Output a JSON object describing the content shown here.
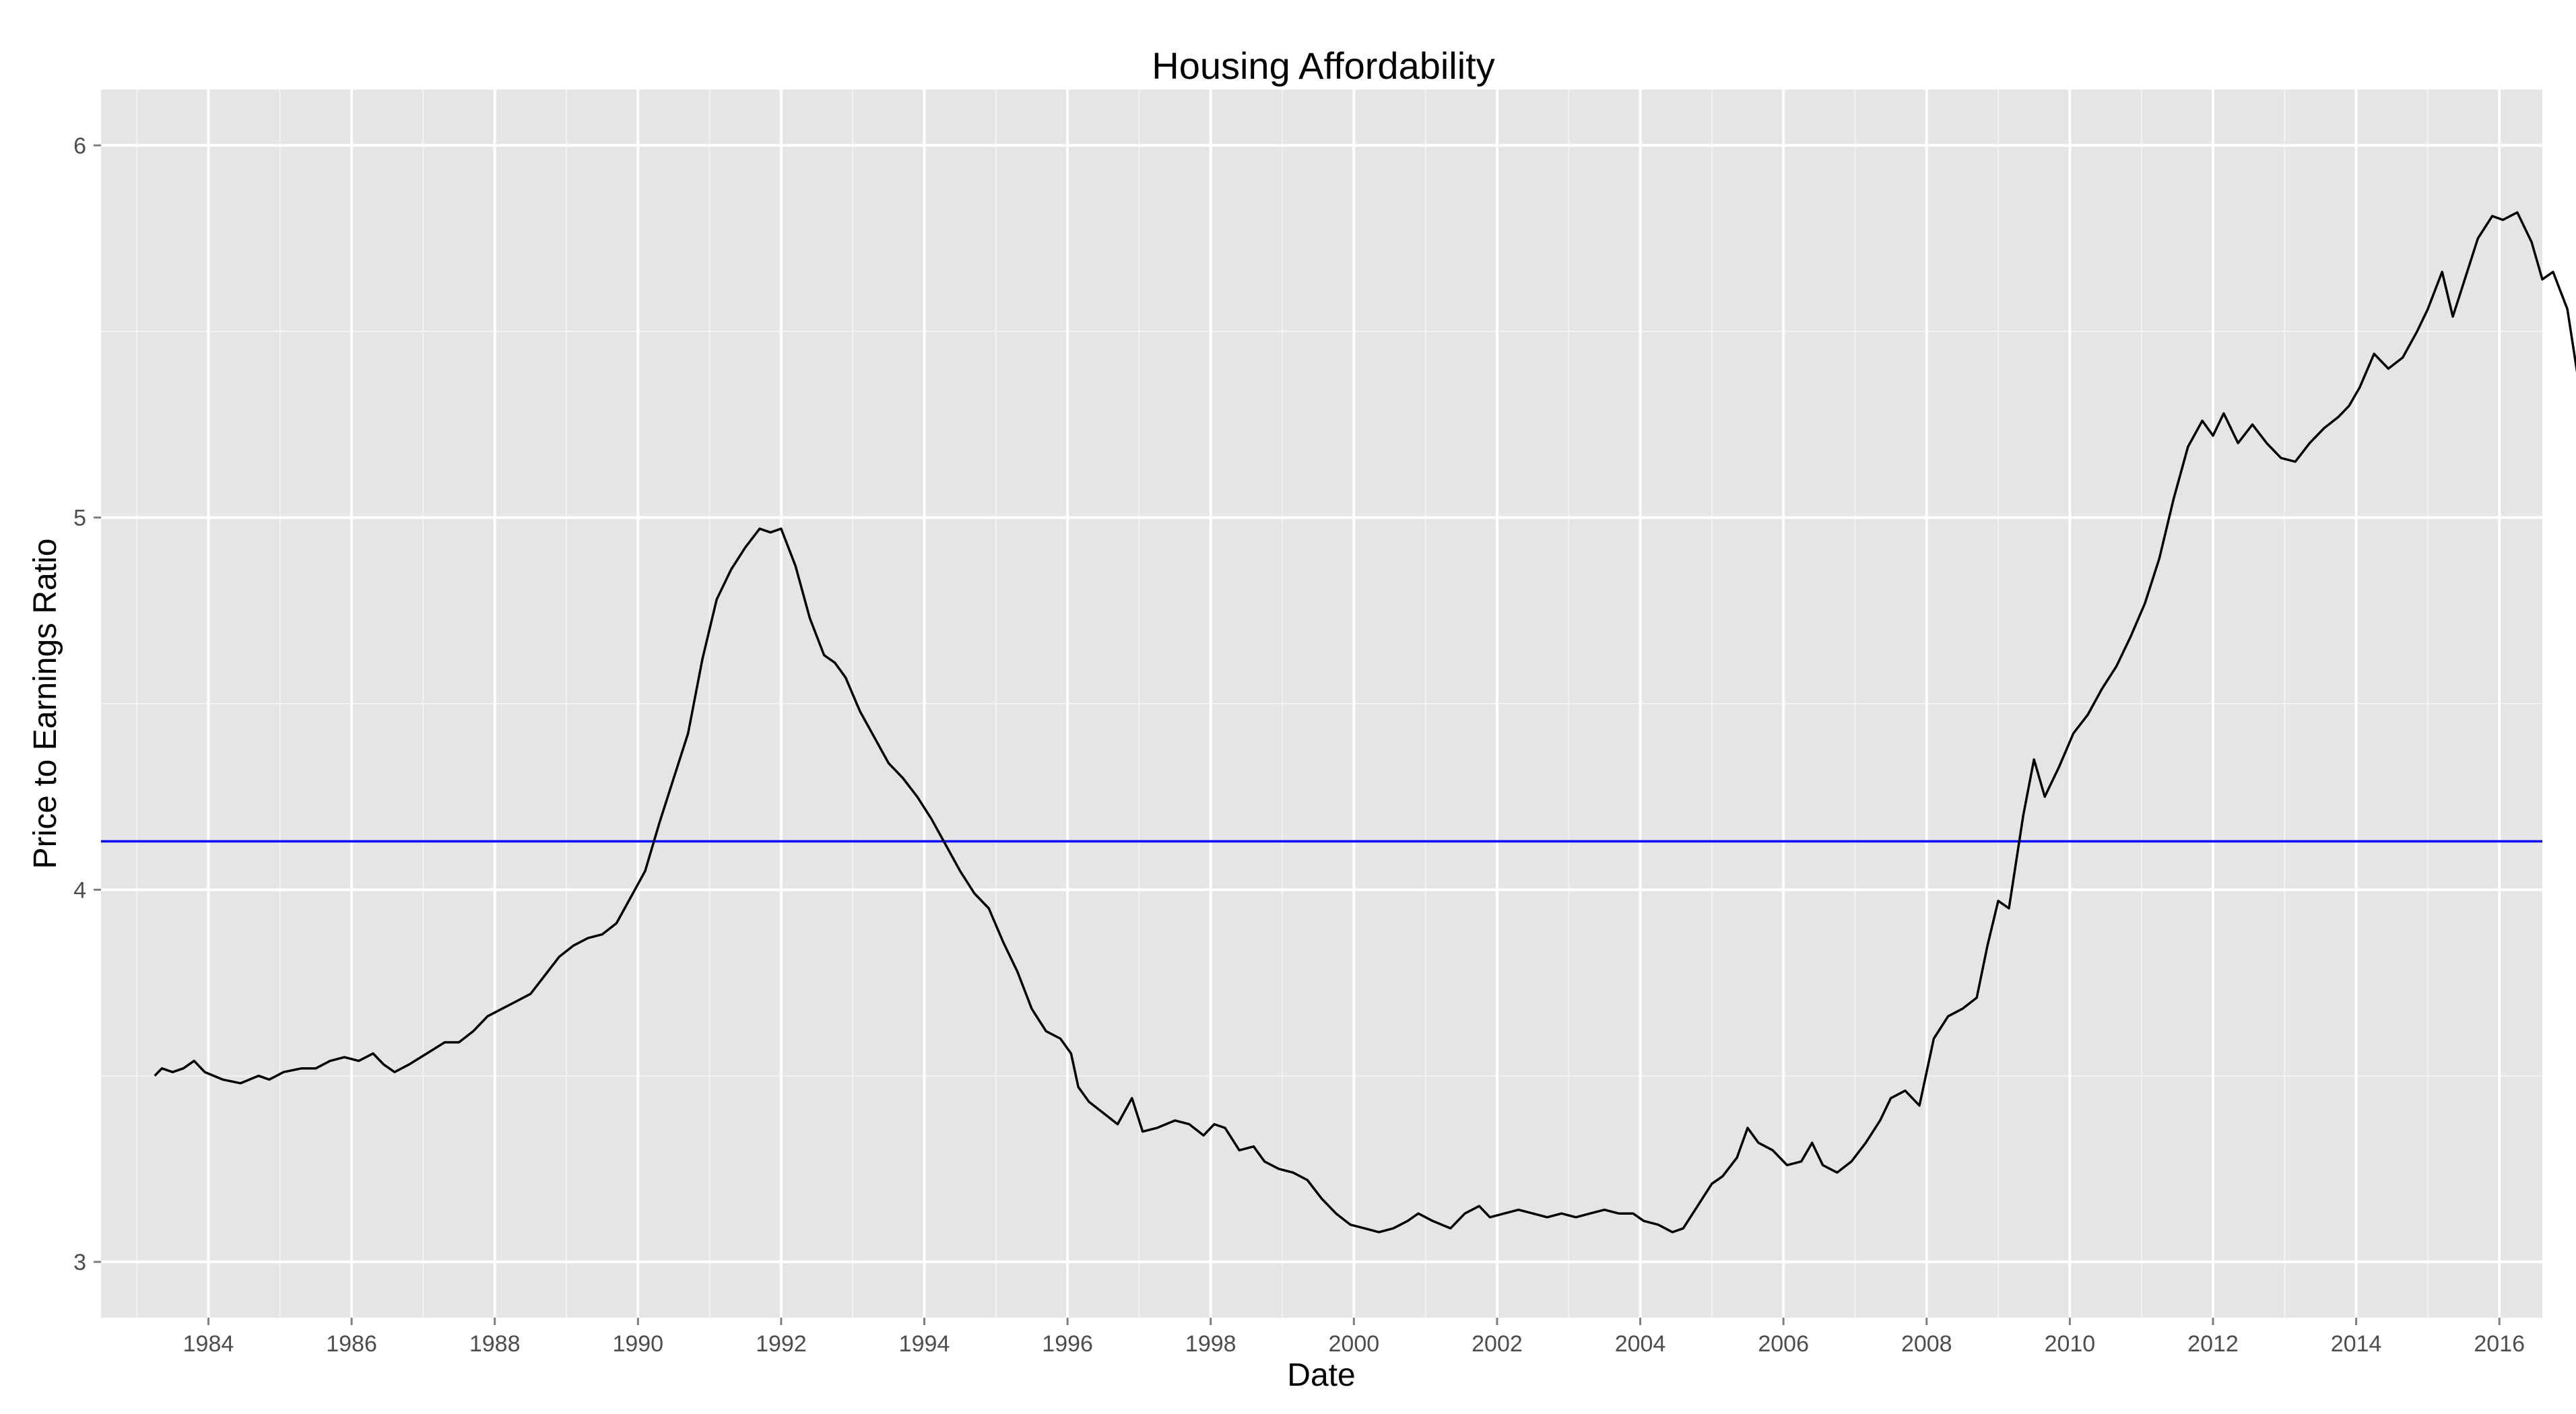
{
  "chart_data": {
    "type": "line",
    "title": "Housing Affordability",
    "xlabel": "Date",
    "ylabel": "Price to Earnings Ratio",
    "xlim": [
      1982.5,
      2016.6
    ],
    "ylim": [
      2.85,
      6.15
    ],
    "x_ticks": [
      1984,
      1986,
      1988,
      1990,
      1992,
      1994,
      1996,
      1998,
      2000,
      2002,
      2004,
      2006,
      2008,
      2010,
      2012,
      2014,
      2016
    ],
    "y_ticks": [
      3,
      4,
      5,
      6
    ],
    "grid": true,
    "background": "#e5e5e5",
    "series": [
      {
        "color": "#000000",
        "points": [
          [
            1983.25,
            3.5
          ],
          [
            1983.35,
            3.52
          ],
          [
            1983.5,
            3.51
          ],
          [
            1983.65,
            3.52
          ],
          [
            1983.8,
            3.54
          ],
          [
            1983.95,
            3.51
          ],
          [
            1984.2,
            3.49
          ],
          [
            1984.45,
            3.48
          ],
          [
            1984.7,
            3.5
          ],
          [
            1984.85,
            3.49
          ],
          [
            1985.05,
            3.51
          ],
          [
            1985.3,
            3.52
          ],
          [
            1985.5,
            3.52
          ],
          [
            1985.7,
            3.54
          ],
          [
            1985.9,
            3.55
          ],
          [
            1986.1,
            3.54
          ],
          [
            1986.3,
            3.56
          ],
          [
            1986.45,
            3.53
          ],
          [
            1986.6,
            3.51
          ],
          [
            1986.8,
            3.53
          ],
          [
            1987.05,
            3.56
          ],
          [
            1987.3,
            3.59
          ],
          [
            1987.5,
            3.59
          ],
          [
            1987.7,
            3.62
          ],
          [
            1987.9,
            3.66
          ],
          [
            1988.1,
            3.68
          ],
          [
            1988.3,
            3.7
          ],
          [
            1988.5,
            3.72
          ],
          [
            1988.7,
            3.77
          ],
          [
            1988.9,
            3.82
          ],
          [
            1989.1,
            3.85
          ],
          [
            1989.3,
            3.87
          ],
          [
            1989.5,
            3.88
          ],
          [
            1989.7,
            3.91
          ],
          [
            1989.9,
            3.98
          ],
          [
            1990.1,
            4.05
          ],
          [
            1990.3,
            4.18
          ],
          [
            1990.5,
            4.3
          ],
          [
            1990.7,
            4.42
          ],
          [
            1990.9,
            4.62
          ],
          [
            1991.1,
            4.78
          ],
          [
            1991.3,
            4.86
          ],
          [
            1991.5,
            4.92
          ],
          [
            1991.7,
            4.97
          ],
          [
            1991.85,
            4.96
          ],
          [
            1992.0,
            4.97
          ],
          [
            1992.2,
            4.87
          ],
          [
            1992.4,
            4.73
          ],
          [
            1992.6,
            4.63
          ],
          [
            1992.75,
            4.61
          ],
          [
            1992.9,
            4.57
          ],
          [
            1993.1,
            4.48
          ],
          [
            1993.3,
            4.41
          ],
          [
            1993.5,
            4.34
          ],
          [
            1993.7,
            4.3
          ],
          [
            1993.9,
            4.25
          ],
          [
            1994.1,
            4.19
          ],
          [
            1994.3,
            4.12
          ],
          [
            1994.5,
            4.05
          ],
          [
            1994.7,
            3.99
          ],
          [
            1994.9,
            3.95
          ],
          [
            1995.1,
            3.86
          ],
          [
            1995.3,
            3.78
          ],
          [
            1995.5,
            3.68
          ],
          [
            1995.7,
            3.62
          ],
          [
            1995.9,
            3.6
          ],
          [
            1996.05,
            3.56
          ],
          [
            1996.15,
            3.47
          ],
          [
            1996.3,
            3.43
          ],
          [
            1996.5,
            3.4
          ],
          [
            1996.7,
            3.37
          ],
          [
            1996.9,
            3.44
          ],
          [
            1997.05,
            3.35
          ],
          [
            1997.25,
            3.36
          ],
          [
            1997.5,
            3.38
          ],
          [
            1997.7,
            3.37
          ],
          [
            1997.9,
            3.34
          ],
          [
            1998.05,
            3.37
          ],
          [
            1998.2,
            3.36
          ],
          [
            1998.4,
            3.3
          ],
          [
            1998.6,
            3.31
          ],
          [
            1998.75,
            3.27
          ],
          [
            1998.95,
            3.25
          ],
          [
            1999.15,
            3.24
          ],
          [
            1999.35,
            3.22
          ],
          [
            1999.55,
            3.17
          ],
          [
            1999.75,
            3.13
          ],
          [
            1999.95,
            3.1
          ],
          [
            2000.15,
            3.09
          ],
          [
            2000.35,
            3.08
          ],
          [
            2000.55,
            3.09
          ],
          [
            2000.75,
            3.11
          ],
          [
            2000.9,
            3.13
          ],
          [
            2001.1,
            3.11
          ],
          [
            2001.35,
            3.09
          ],
          [
            2001.55,
            3.13
          ],
          [
            2001.75,
            3.15
          ],
          [
            2001.9,
            3.12
          ],
          [
            2002.1,
            3.13
          ],
          [
            2002.3,
            3.14
          ],
          [
            2002.5,
            3.13
          ],
          [
            2002.7,
            3.12
          ],
          [
            2002.9,
            3.13
          ],
          [
            2003.1,
            3.12
          ],
          [
            2003.3,
            3.13
          ],
          [
            2003.5,
            3.14
          ],
          [
            2003.7,
            3.13
          ],
          [
            2003.9,
            3.13
          ],
          [
            2004.05,
            3.11
          ],
          [
            2004.25,
            3.1
          ],
          [
            2004.45,
            3.08
          ],
          [
            2004.6,
            3.09
          ],
          [
            2004.8,
            3.15
          ],
          [
            2005.0,
            3.21
          ],
          [
            2005.15,
            3.23
          ],
          [
            2005.35,
            3.28
          ],
          [
            2005.5,
            3.36
          ],
          [
            2005.65,
            3.32
          ],
          [
            2005.85,
            3.3
          ],
          [
            2006.05,
            3.26
          ],
          [
            2006.25,
            3.27
          ],
          [
            2006.4,
            3.32
          ],
          [
            2006.55,
            3.26
          ],
          [
            2006.75,
            3.24
          ],
          [
            2006.95,
            3.27
          ],
          [
            2007.15,
            3.32
          ],
          [
            2007.35,
            3.38
          ],
          [
            2007.5,
            3.44
          ],
          [
            2007.7,
            3.46
          ],
          [
            2007.9,
            3.42
          ],
          [
            2008.1,
            3.6
          ],
          [
            2008.3,
            3.66
          ],
          [
            2008.5,
            3.68
          ],
          [
            2008.7,
            3.71
          ],
          [
            2008.85,
            3.85
          ],
          [
            2009.0,
            3.97
          ],
          [
            2009.15,
            3.95
          ],
          [
            2009.35,
            4.2
          ],
          [
            2009.5,
            4.35
          ],
          [
            2009.65,
            4.25
          ],
          [
            2009.85,
            4.33
          ],
          [
            2010.05,
            4.42
          ],
          [
            2010.25,
            4.47
          ],
          [
            2010.45,
            4.54
          ],
          [
            2010.65,
            4.6
          ],
          [
            2010.85,
            4.68
          ],
          [
            2011.05,
            4.77
          ],
          [
            2011.25,
            4.89
          ],
          [
            2011.45,
            5.05
          ],
          [
            2011.65,
            5.19
          ],
          [
            2011.85,
            5.26
          ],
          [
            2012.0,
            5.22
          ],
          [
            2012.15,
            5.28
          ],
          [
            2012.35,
            5.2
          ],
          [
            2012.55,
            5.25
          ],
          [
            2012.75,
            5.2
          ],
          [
            2012.95,
            5.16
          ],
          [
            2013.15,
            5.15
          ],
          [
            2013.35,
            5.2
          ],
          [
            2013.55,
            5.24
          ],
          [
            2013.75,
            5.27
          ],
          [
            2013.9,
            5.3
          ],
          [
            2014.05,
            5.35
          ],
          [
            2014.25,
            5.44
          ],
          [
            2014.45,
            5.4
          ],
          [
            2014.65,
            5.43
          ],
          [
            2014.85,
            5.5
          ],
          [
            2015.0,
            5.56
          ],
          [
            2015.2,
            5.66
          ],
          [
            2015.35,
            5.54
          ],
          [
            2015.5,
            5.63
          ],
          [
            2015.7,
            5.75
          ],
          [
            2015.9,
            5.81
          ],
          [
            2016.05,
            5.8
          ],
          [
            2016.25,
            5.82
          ],
          [
            2016.45,
            5.74
          ],
          [
            2016.6,
            5.64
          ],
          [
            2016.75,
            5.66
          ],
          [
            2016.95,
            5.56
          ],
          [
            2017.15,
            5.31
          ]
        ]
      },
      {
        "color": "#0000ff",
        "type": "hline",
        "y": 4.13
      }
    ]
  }
}
